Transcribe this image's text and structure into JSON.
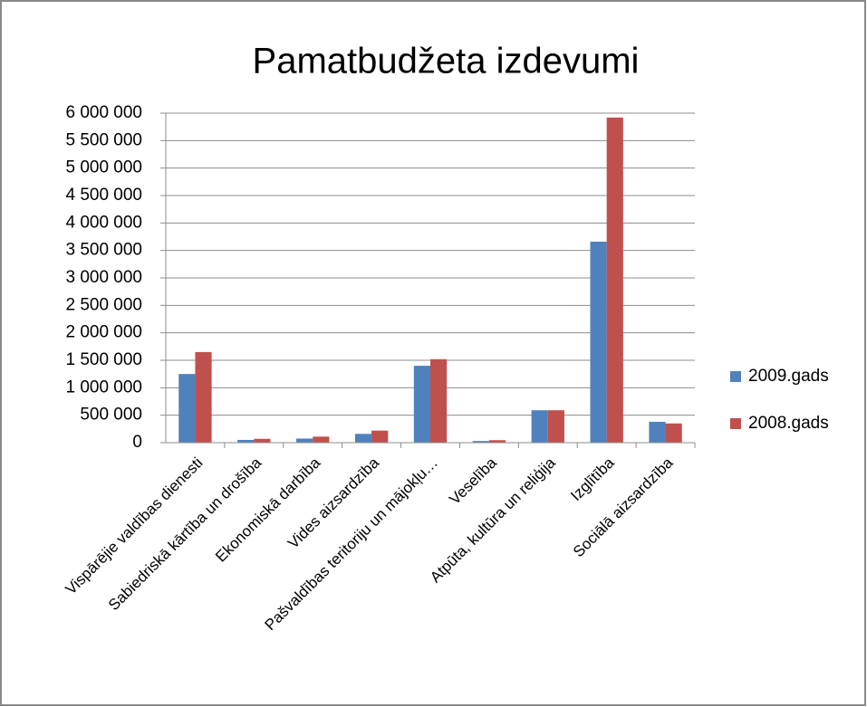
{
  "chart_data": {
    "type": "bar",
    "title": "Pamatbudžeta izdevumi",
    "categories": [
      "Vispārējie valdības dienesti",
      "Sabiedriskā kārtība un drošība",
      "Ekonomiskā darbība",
      "Vides aizsardzība",
      "Pašvaldības teritoriju un mājokļu…",
      "Veselība",
      "Atpūta, kultūra un reliģija",
      "Izglītība",
      "Sociālā aizsardzība"
    ],
    "series": [
      {
        "name": "2009.gads",
        "color": "#4f81bd",
        "values": [
          1250000,
          50000,
          75000,
          160000,
          1400000,
          30000,
          590000,
          3660000,
          380000
        ]
      },
      {
        "name": "2008.gads",
        "color": "#c0504d",
        "values": [
          1650000,
          70000,
          110000,
          220000,
          1520000,
          45000,
          590000,
          5920000,
          350000
        ]
      }
    ],
    "ylim": [
      0,
      6000000
    ],
    "yticks": [
      0,
      {
        "value": 500000,
        "label": "500 000"
      },
      {
        "value": 1000000,
        "label": "1 000 000"
      },
      {
        "value": 1500000,
        "label": "1 500 000"
      },
      {
        "value": 2000000,
        "label": "2 000 000"
      },
      {
        "value": 2500000,
        "label": "2 500 000"
      },
      {
        "value": 3000000,
        "label": "3 000 000"
      },
      {
        "value": 3500000,
        "label": "3 500 000"
      },
      {
        "value": 4000000,
        "label": "4 000 000"
      },
      {
        "value": 4500000,
        "label": "4 500 000"
      },
      {
        "value": 5000000,
        "label": "5 000 000"
      },
      {
        "value": 5500000,
        "label": "5 500 000"
      },
      {
        "value": 6000000,
        "label": "6 000 000"
      }
    ],
    "grid": true,
    "legend": "right"
  }
}
